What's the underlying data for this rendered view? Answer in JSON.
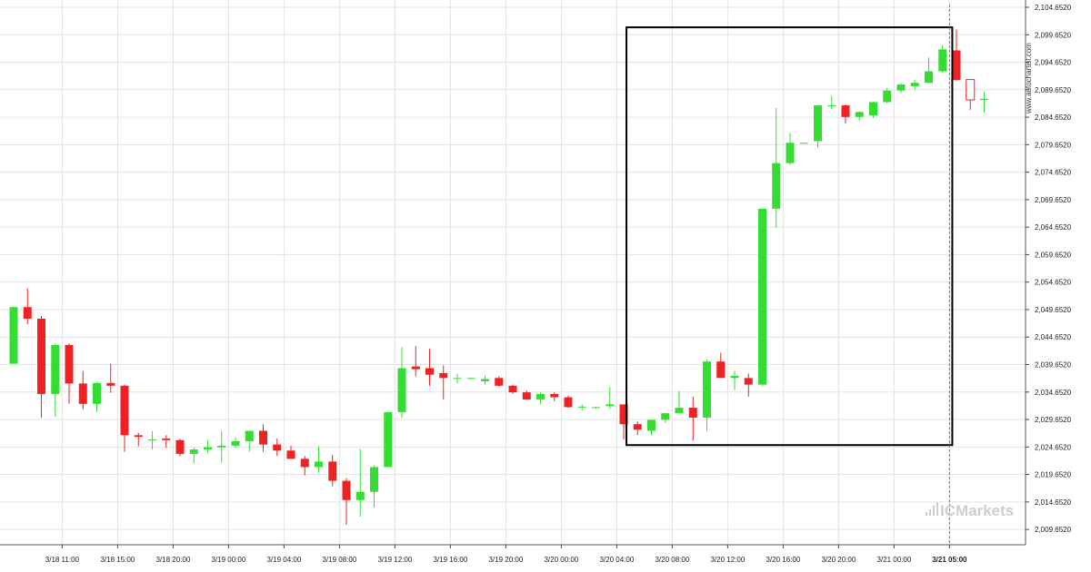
{
  "chart_data": {
    "type": "candlestick",
    "watermark": "www.autochartist.com",
    "brand": "ICMarkets",
    "colors": {
      "up": "#33dd33",
      "down": "#ee2222",
      "grid": "#e3e3e3",
      "pattern_box": "#000000",
      "pattern_line": "#777777"
    },
    "y_axis": {
      "range": [
        2007.0,
        2105.5
      ],
      "ticks": [
        "2,009.6520",
        "2,014.6520",
        "2,019.6520",
        "2,024.6520",
        "2,029.6520",
        "2,034.6520",
        "2,039.6520",
        "2,044.6520",
        "2,049.6520",
        "2,054.6520",
        "2,059.6520",
        "2,064.6520",
        "2,069.6520",
        "2,074.6520",
        "2,079.6520",
        "2,084.6520",
        "2,089.6520",
        "2,094.6520",
        "2,099.6520",
        "2,104.6520"
      ],
      "tick_values": [
        2009.652,
        2014.652,
        2019.652,
        2024.652,
        2029.652,
        2034.652,
        2039.652,
        2044.652,
        2049.652,
        2054.652,
        2059.652,
        2064.652,
        2069.652,
        2074.652,
        2079.652,
        2084.652,
        2089.652,
        2094.652,
        2099.652,
        2104.652
      ]
    },
    "x_axis": {
      "labels": [
        "3/18 11:00",
        "3/18 15:00",
        "3/18 20:00",
        "3/19 00:00",
        "3/19 04:00",
        "3/19 08:00",
        "3/19 12:00",
        "3/19 16:00",
        "3/19 20:00",
        "3/20 00:00",
        "3/20 04:00",
        "3/20 08:00",
        "3/20 12:00",
        "3/20 16:00",
        "3/20 20:00",
        "3/21 00:00",
        "3/21 05:00"
      ],
      "label_positions": [
        3.5,
        7.5,
        11.5,
        15.5,
        19.5,
        23.5,
        27.5,
        31.5,
        35.5,
        39.5,
        43.5,
        47.5,
        51.5,
        55.5,
        59.5,
        63.5,
        67.5
      ],
      "highlighted": "3/21 05:00"
    },
    "candles": [
      [
        2039.8,
        2050.1,
        2039.8,
        2050.1
      ],
      [
        2050.1,
        2053.5,
        2047.0,
        2048.0
      ],
      [
        2048.0,
        2048.5,
        2030.0,
        2034.3
      ],
      [
        2034.3,
        2043.5,
        2030.2,
        2043.2
      ],
      [
        2043.2,
        2043.5,
        2032.5,
        2036.2
      ],
      [
        2036.2,
        2038.5,
        2031.5,
        2032.5
      ],
      [
        2032.5,
        2036.5,
        2031.0,
        2036.3
      ],
      [
        2036.3,
        2039.8,
        2034.5,
        2035.8
      ],
      [
        2035.8,
        2036.0,
        2023.8,
        2026.8
      ],
      [
        2026.8,
        2027.2,
        2024.8,
        2026.5
      ],
      [
        2026.0,
        2027.5,
        2024.2,
        2026.0
      ],
      [
        2026.2,
        2026.8,
        2024.5,
        2025.9
      ],
      [
        2025.9,
        2026.2,
        2023.0,
        2023.4
      ],
      [
        2023.4,
        2024.5,
        2021.7,
        2024.2
      ],
      [
        2024.2,
        2025.9,
        2023.5,
        2024.6
      ],
      [
        2024.6,
        2027.6,
        2021.8,
        2024.9
      ],
      [
        2024.9,
        2026.4,
        2024.5,
        2025.7
      ],
      [
        2025.7,
        2027.5,
        2023.8,
        2027.6
      ],
      [
        2027.6,
        2028.8,
        2023.8,
        2025.1
      ],
      [
        2025.1,
        2026.2,
        2023.0,
        2024.0
      ],
      [
        2024.0,
        2024.9,
        2022.5,
        2022.5
      ],
      [
        2022.5,
        2023.0,
        2019.5,
        2021.0
      ],
      [
        2021.0,
        2024.8,
        2020.0,
        2022.0
      ],
      [
        2022.0,
        2023.2,
        2017.5,
        2018.5
      ],
      [
        2018.5,
        2019.0,
        2010.5,
        2015.0
      ],
      [
        2015.0,
        2024.3,
        2012.0,
        2016.5
      ],
      [
        2016.5,
        2021.3,
        2013.7,
        2021.0
      ],
      [
        2021.0,
        2031.0,
        2021.0,
        2031.0
      ],
      [
        2031.0,
        2042.8,
        2030.0,
        2039.0
      ],
      [
        2039.3,
        2043.0,
        2037.5,
        2038.8
      ],
      [
        2039.0,
        2042.5,
        2035.8,
        2037.8
      ],
      [
        2038.1,
        2039.5,
        2033.3,
        2037.2
      ],
      [
        2037.2,
        2038.0,
        2036.2,
        2037.2
      ],
      [
        2037.2,
        2037.3,
        2037.0,
        2037.2
      ],
      [
        2036.6,
        2037.6,
        2036.0,
        2037.0
      ],
      [
        2037.2,
        2037.5,
        2035.6,
        2035.8
      ],
      [
        2035.8,
        2036.0,
        2034.3,
        2034.6
      ],
      [
        2034.6,
        2034.9,
        2033.2,
        2033.3
      ],
      [
        2033.3,
        2034.6,
        2032.4,
        2034.3
      ],
      [
        2034.3,
        2034.6,
        2033.0,
        2033.7
      ],
      [
        2033.7,
        2034.0,
        2031.8,
        2031.9
      ],
      [
        2032.0,
        2032.4,
        2031.3,
        2032.0
      ],
      [
        2031.9,
        2032.0,
        2031.6,
        2031.9
      ],
      [
        2032.1,
        2035.5,
        2031.6,
        2032.4
      ],
      [
        2032.4,
        2032.4,
        2026.0,
        2028.8
      ],
      [
        2028.8,
        2029.3,
        2026.8,
        2027.8
      ],
      [
        2027.6,
        2029.5,
        2026.8,
        2029.6
      ],
      [
        2029.6,
        2030.8,
        2029.0,
        2030.8
      ],
      [
        2030.8,
        2034.8,
        2030.8,
        2031.8
      ],
      [
        2031.8,
        2033.8,
        2025.8,
        2030.0
      ],
      [
        2030.0,
        2040.6,
        2027.5,
        2040.2
      ],
      [
        2040.2,
        2041.8,
        2037.8,
        2037.2
      ],
      [
        2037.2,
        2038.5,
        2035.0,
        2037.6
      ],
      [
        2037.2,
        2038.0,
        2033.8,
        2036.0
      ],
      [
        2036.0,
        2068.0,
        2035.7,
        2068.0
      ],
      [
        2068.0,
        2086.3,
        2064.5,
        2076.3
      ],
      [
        2076.3,
        2081.8,
        2076.0,
        2080.0
      ],
      [
        2080.0,
        2080.0,
        2080.0,
        2080.0
      ],
      [
        2080.3,
        2086.8,
        2079.2,
        2086.8
      ],
      [
        2086.8,
        2088.5,
        2086.1,
        2086.8
      ],
      [
        2086.8,
        2087.0,
        2083.5,
        2084.7
      ],
      [
        2084.7,
        2085.7,
        2084.0,
        2085.6
      ],
      [
        2085.0,
        2087.5,
        2084.5,
        2087.4
      ],
      [
        2087.4,
        2090.0,
        2087.2,
        2089.5
      ],
      [
        2089.5,
        2090.8,
        2089.0,
        2090.6
      ],
      [
        2090.3,
        2091.5,
        2089.7,
        2090.9
      ],
      [
        2090.9,
        2095.5,
        2090.9,
        2093.0
      ],
      [
        2093.0,
        2097.8,
        2092.7,
        2097.0
      ],
      [
        2096.8,
        2100.6,
        2091.3,
        2091.4
      ],
      [
        2091.5,
        2091.6,
        2086.0,
        2087.8
      ],
      [
        2087.8,
        2089.2,
        2085.5,
        2088.0
      ]
    ],
    "hollow_candle_index": 69,
    "pattern_box": {
      "start_index": 44.2,
      "end_index": 67.7,
      "top": 2101.0,
      "bottom": 2025.0
    },
    "pattern_line_index": 67.5
  }
}
